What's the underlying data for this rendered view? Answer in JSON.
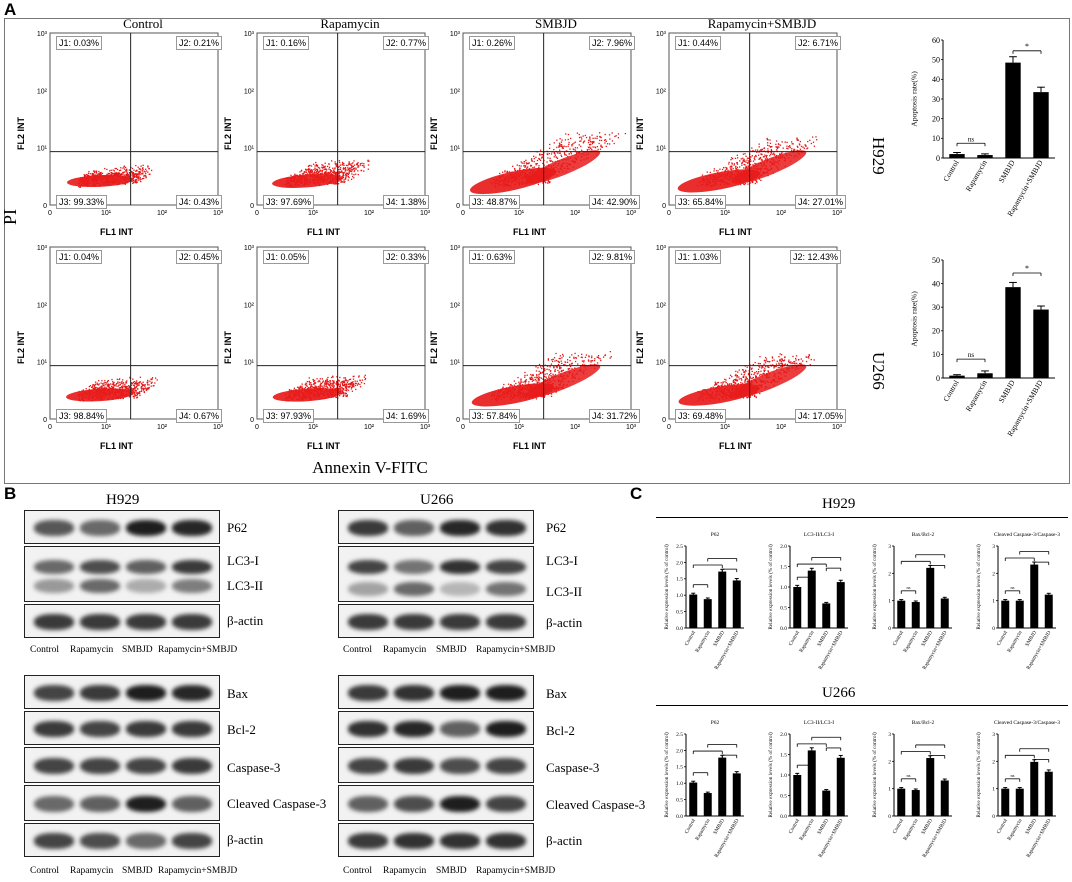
{
  "panel_a": {
    "letter": "A",
    "y_axis_label": "PI",
    "x_axis_label": "Annexin V-FITC",
    "conditions": [
      "Control",
      "Rapamycin",
      "SMBJD",
      "Rapamycin+SMBJD"
    ],
    "row_labels": [
      "H929",
      "U266"
    ],
    "flow_x_label": "FL1 INT",
    "flow_y_label": "FL2 INT",
    "ticks": [
      "0",
      "10¹",
      "10²",
      "10³"
    ],
    "quadrants": [
      [
        {
          "J1": "J1: 0.03%",
          "J2": "J2: 0.21%",
          "J3": "J3: 99.33%",
          "J4": "J4: 0.43%"
        },
        {
          "J1": "J1: 0.16%",
          "J2": "J2: 0.77%",
          "J3": "J3: 97.69%",
          "J4": "J4: 1.38%"
        },
        {
          "J1": "J1: 0.26%",
          "J2": "J2: 7.96%",
          "J3": "J3: 48.87%",
          "J4": "J4: 42.90%"
        },
        {
          "J1": "J1: 0.44%",
          "J2": "J2: 6.71%",
          "J3": "J3: 65.84%",
          "J4": "J4: 27.01%"
        }
      ],
      [
        {
          "J1": "J1: 0.04%",
          "J2": "J2: 0.45%",
          "J3": "J3: 98.84%",
          "J4": "J4: 0.67%"
        },
        {
          "J1": "J1: 0.05%",
          "J2": "J2: 0.33%",
          "J3": "J3: 97.93%",
          "J4": "J4: 1.69%"
        },
        {
          "J1": "J1: 0.63%",
          "J2": "J2: 9.81%",
          "J3": "J3: 57.84%",
          "J4": "J4: 31.72%"
        },
        {
          "J1": "J1: 1.03%",
          "J2": "J2: 12.43%",
          "J3": "J3: 69.48%",
          "J4": "J4: 17.05%"
        }
      ]
    ]
  },
  "chart_data": [
    {
      "type": "bar",
      "id": "apoptosis-h929",
      "ylabel": "Apoptosis rate(%)",
      "categories": [
        "Control",
        "Rapamycin",
        "SMBJD",
        "Rapamycin+SMBJD"
      ],
      "values": [
        2,
        1.5,
        48.5,
        33.5
      ],
      "errors": [
        0.8,
        0.6,
        3,
        2.5
      ],
      "ylim": [
        0,
        60
      ],
      "yticks": [
        0,
        10,
        20,
        30,
        40,
        50,
        60
      ],
      "annotations": [
        "ns",
        "*"
      ]
    },
    {
      "type": "bar",
      "id": "apoptosis-u266",
      "ylabel": "Apoptosis rate(%)",
      "categories": [
        "Control",
        "Rapamycin",
        "SMBJD",
        "Rapamycin+SMBJD"
      ],
      "values": [
        1,
        2,
        38.5,
        29
      ],
      "errors": [
        0.4,
        1,
        2,
        1.5
      ],
      "ylim": [
        0,
        50
      ],
      "yticks": [
        0,
        10,
        20,
        30,
        40,
        50
      ],
      "annotations": [
        "ns",
        "*"
      ]
    },
    {
      "type": "bar",
      "id": "h929-p62",
      "title": "P62",
      "ylabel": "Relative expression levels (% of control)",
      "categories": [
        "Control",
        "Rapamycin",
        "SMBJD",
        "Rapamycin+SMBJD"
      ],
      "values": [
        1.02,
        0.88,
        1.72,
        1.45
      ],
      "ylim": [
        0,
        2.5
      ],
      "yticks": [
        "0.0",
        "0.5",
        "1.0",
        "1.5",
        "2.0",
        "2.5"
      ]
    },
    {
      "type": "bar",
      "id": "h929-lc3",
      "title": "LC3-II/LC3-I",
      "ylabel": "Relative expression levels (% of control)",
      "categories": [
        "Control",
        "Rapamycin",
        "SMBJD",
        "Rapamycin+SMBJD"
      ],
      "values": [
        1.0,
        1.4,
        0.6,
        1.12
      ],
      "ylim": [
        0,
        2.0
      ],
      "yticks": [
        "0.0",
        "0.5",
        "1.0",
        "1.5",
        "2.0"
      ]
    },
    {
      "type": "bar",
      "id": "h929-bax",
      "title": "Bax/Bcl-2",
      "ylabel": "Relative expression levels (% of control)",
      "categories": [
        "Control",
        "Rapamycin",
        "SMBJD",
        "Rapamycin+SMBJD"
      ],
      "values": [
        1.0,
        0.95,
        2.2,
        1.08
      ],
      "ylim": [
        0,
        3
      ],
      "yticks": [
        "0",
        "1",
        "2",
        "3"
      ],
      "annotations": [
        "ns"
      ]
    },
    {
      "type": "bar",
      "id": "h929-casp",
      "title": "Cleaved Caspase-3/Caspase-3",
      "ylabel": "Relative expression levels (% of control)",
      "categories": [
        "Control",
        "Rapamycin",
        "SMBJD",
        "Rapamycin+SMBJD"
      ],
      "values": [
        1.0,
        1.0,
        2.32,
        1.22
      ],
      "ylim": [
        0,
        3
      ],
      "yticks": [
        "0",
        "1",
        "2",
        "3"
      ],
      "annotations": [
        "ns"
      ]
    },
    {
      "type": "bar",
      "id": "u266-p62",
      "title": "P62",
      "ylabel": "Relative expression levels (% of control)",
      "categories": [
        "Control",
        "Rapamycin",
        "SMBJD",
        "Rapamycin+SMBJD"
      ],
      "values": [
        1.02,
        0.7,
        1.78,
        1.3
      ],
      "ylim": [
        0,
        2.5
      ],
      "yticks": [
        "0.0",
        "0.5",
        "1.0",
        "1.5",
        "2.0",
        "2.5"
      ]
    },
    {
      "type": "bar",
      "id": "u266-lc3",
      "title": "LC3-II/LC3-I",
      "ylabel": "Relative expression levels (% of control)",
      "categories": [
        "Control",
        "Rapamycin",
        "SMBJD",
        "Rapamycin+SMBJD"
      ],
      "values": [
        1.0,
        1.6,
        0.62,
        1.42
      ],
      "ylim": [
        0,
        2.0
      ],
      "yticks": [
        "0.0",
        "0.5",
        "1.0",
        "1.5",
        "2.0"
      ]
    },
    {
      "type": "bar",
      "id": "u266-bax",
      "title": "Bax/Bcl-2",
      "ylabel": "Relative expression levels (% of control)",
      "categories": [
        "Control",
        "Rapamycin",
        "SMBJD",
        "Rapamycin+SMBJD"
      ],
      "values": [
        1.0,
        0.95,
        2.12,
        1.3
      ],
      "ylim": [
        0,
        3
      ],
      "yticks": [
        "0",
        "1",
        "2",
        "3"
      ],
      "annotations": [
        "ns"
      ]
    },
    {
      "type": "bar",
      "id": "u266-casp",
      "title": "Cleaved Caspase-3/Caspase-3",
      "ylabel": "Relative expression levels (% of control)",
      "categories": [
        "Control",
        "Rapamycin",
        "SMBJD",
        "Rapamycin+SMBJD"
      ],
      "values": [
        1.0,
        1.0,
        1.98,
        1.62
      ],
      "ylim": [
        0,
        3
      ],
      "yticks": [
        "0",
        "1",
        "2",
        "3"
      ],
      "annotations": [
        "ns"
      ]
    }
  ],
  "panel_b": {
    "letter": "B",
    "cell_lines": [
      "H929",
      "U266"
    ],
    "proteins_top": [
      "P62",
      "LC3-I",
      "LC3-II",
      "β-actin"
    ],
    "proteins_bottom": [
      "Bax",
      "Bcl-2",
      "Caspase-3",
      "Cleaved Caspase-3",
      "β-actin"
    ],
    "lanes": [
      "Control",
      "Rapamycin",
      "SMBJD",
      "Rapamycin+SMBJD"
    ]
  },
  "panel_c": {
    "letter": "C",
    "titles": [
      "H929",
      "U266"
    ]
  }
}
